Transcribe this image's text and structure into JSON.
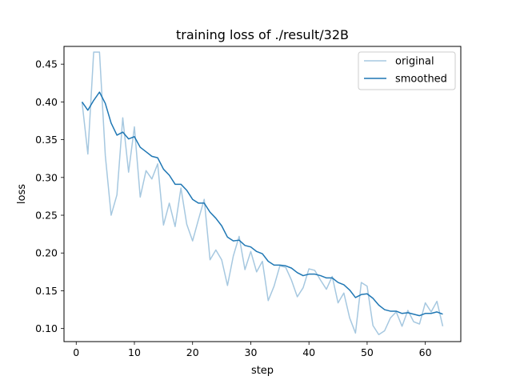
{
  "chart_data": {
    "type": "line",
    "title": "training loss of ./result/32B",
    "xlabel": "step",
    "ylabel": "loss",
    "xlim": [
      -2.1,
      66.1
    ],
    "ylim": [
      0.0827,
      0.4735
    ],
    "xticks": [
      0,
      10,
      20,
      30,
      40,
      50,
      60
    ],
    "yticks": [
      0.1,
      0.15,
      0.2,
      0.25,
      0.3,
      0.35,
      0.4,
      0.45
    ],
    "xtick_labels": [
      "0",
      "10",
      "20",
      "30",
      "40",
      "50",
      "60"
    ],
    "ytick_labels": [
      "0.10",
      "0.15",
      "0.20",
      "0.25",
      "0.30",
      "0.35",
      "0.40",
      "0.45"
    ],
    "grid": false,
    "legend": "top-right",
    "x": [
      1,
      2,
      3,
      4,
      5,
      6,
      7,
      8,
      9,
      10,
      11,
      12,
      13,
      14,
      15,
      16,
      17,
      18,
      19,
      20,
      21,
      22,
      23,
      24,
      25,
      26,
      27,
      28,
      29,
      30,
      31,
      32,
      33,
      34,
      35,
      36,
      37,
      38,
      39,
      40,
      41,
      42,
      43,
      44,
      45,
      46,
      47,
      48,
      49,
      50,
      51,
      52,
      53,
      54,
      55,
      56,
      57,
      58,
      59,
      60,
      61,
      62,
      63
    ],
    "series": [
      {
        "name": "original",
        "color": "#a6c8e0",
        "values": [
          0.4,
          0.331,
          0.466,
          0.466,
          0.329,
          0.25,
          0.277,
          0.379,
          0.307,
          0.367,
          0.274,
          0.309,
          0.298,
          0.318,
          0.237,
          0.266,
          0.235,
          0.286,
          0.238,
          0.216,
          0.244,
          0.271,
          0.191,
          0.204,
          0.191,
          0.157,
          0.196,
          0.222,
          0.178,
          0.202,
          0.175,
          0.189,
          0.137,
          0.156,
          0.183,
          0.181,
          0.164,
          0.142,
          0.154,
          0.179,
          0.177,
          0.164,
          0.152,
          0.169,
          0.134,
          0.147,
          0.114,
          0.094,
          0.161,
          0.156,
          0.104,
          0.092,
          0.097,
          0.114,
          0.122,
          0.103,
          0.124,
          0.109,
          0.106,
          0.134,
          0.122,
          0.136,
          0.103
        ]
      },
      {
        "name": "smoothed",
        "color": "#1f77b4",
        "values": [
          0.4,
          0.389,
          0.402,
          0.413,
          0.398,
          0.372,
          0.356,
          0.36,
          0.351,
          0.354,
          0.34,
          0.334,
          0.328,
          0.326,
          0.311,
          0.303,
          0.291,
          0.291,
          0.283,
          0.271,
          0.266,
          0.266,
          0.254,
          0.246,
          0.236,
          0.221,
          0.216,
          0.217,
          0.21,
          0.208,
          0.202,
          0.199,
          0.189,
          0.184,
          0.184,
          0.183,
          0.18,
          0.174,
          0.17,
          0.172,
          0.172,
          0.17,
          0.167,
          0.167,
          0.161,
          0.158,
          0.151,
          0.141,
          0.145,
          0.146,
          0.14,
          0.131,
          0.125,
          0.123,
          0.123,
          0.12,
          0.121,
          0.119,
          0.117,
          0.12,
          0.12,
          0.122,
          0.119
        ]
      }
    ]
  }
}
